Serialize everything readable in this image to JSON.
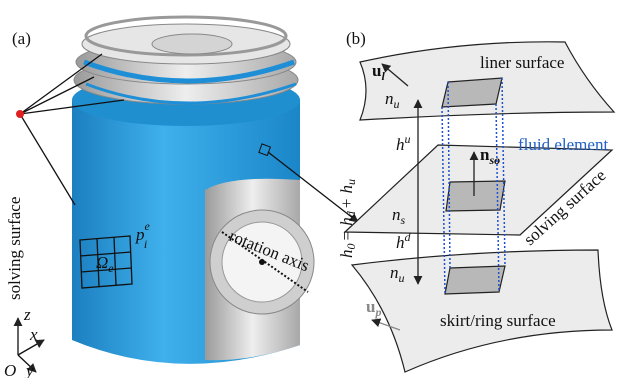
{
  "panel_a": {
    "label": "(a)",
    "solving_surface": "solving surface",
    "p_element": {
      "base": "p",
      "sub": "i",
      "sup": "e"
    },
    "omega": {
      "base": "Ω",
      "sub": "e"
    },
    "rotation_axis": "rotation axis",
    "axes": {
      "z": "z",
      "x": "x",
      "y": "y",
      "origin": "O"
    }
  },
  "panel_b": {
    "label": "(b)",
    "liner_surface": "liner surface",
    "u_l": {
      "base": "u",
      "sub": "l"
    },
    "n_u_top": {
      "base": "n",
      "sub": "u"
    },
    "h_u": {
      "base": "h",
      "sup": "u"
    },
    "n_so": {
      "base": "n",
      "sub": "so"
    },
    "fluid_element": "fluid element",
    "h0_equation": [
      {
        "base": "h",
        "sub": "0"
      },
      {
        "base": "= h",
        "sub": "d"
      },
      {
        "base": "+ h",
        "sub": "u"
      }
    ],
    "solving_surface": "solving surface",
    "n_s": {
      "base": "n",
      "sub": "s"
    },
    "h_d": {
      "base": "h",
      "sup": "d"
    },
    "n_u_bottom": {
      "base": "n",
      "sub": "u"
    },
    "u_p": {
      "base": "u",
      "sub": "p"
    },
    "skirt_surface": "skirt/ring surface"
  }
}
